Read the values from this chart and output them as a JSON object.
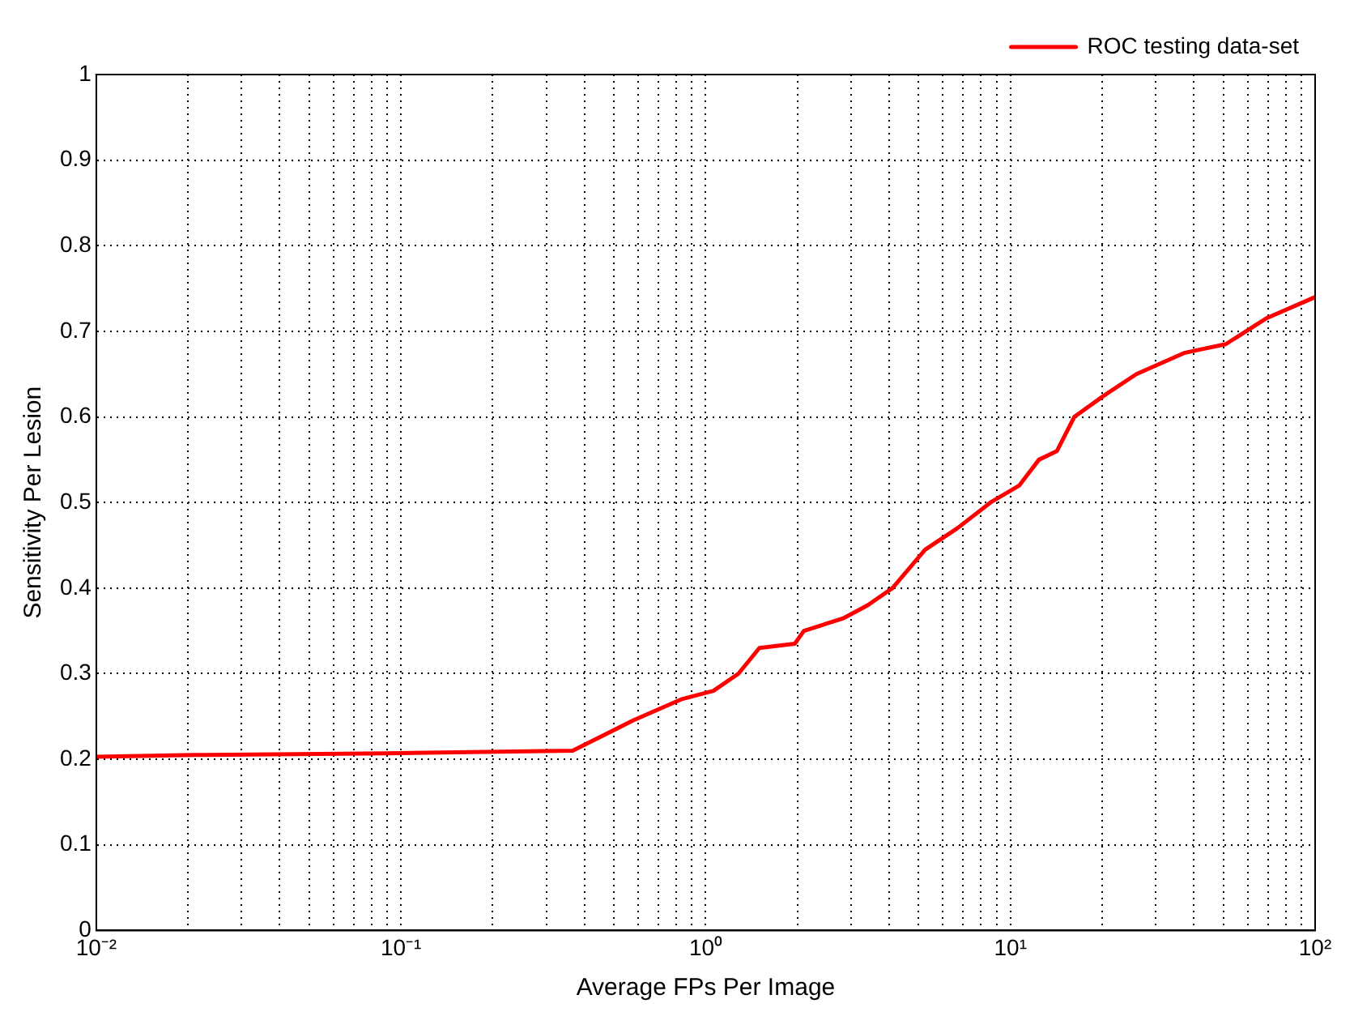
{
  "chart_data": {
    "type": "line",
    "xlabel": "Average FPs Per Image",
    "ylabel": "Sensitivity Per Lesion",
    "log": "x",
    "grid": true,
    "legend": "top right",
    "marker": "none",
    "line_style": "solid",
    "xlim": [
      0.01,
      100
    ],
    "ylim": [
      0,
      1
    ],
    "xticks": [
      {
        "value": 0.01,
        "label": "10⁻²"
      },
      {
        "value": 0.02,
        "label": null
      },
      {
        "value": 0.03,
        "label": null
      },
      {
        "value": 0.04,
        "label": null
      },
      {
        "value": 0.05,
        "label": null
      },
      {
        "value": 0.06,
        "label": null
      },
      {
        "value": 0.07,
        "label": null
      },
      {
        "value": 0.08,
        "label": null
      },
      {
        "value": 0.09,
        "label": null
      },
      {
        "value": 0.1,
        "label": "10⁻¹"
      },
      {
        "value": 0.2,
        "label": null
      },
      {
        "value": 0.3,
        "label": null
      },
      {
        "value": 0.4,
        "label": null
      },
      {
        "value": 0.5,
        "label": null
      },
      {
        "value": 0.6,
        "label": null
      },
      {
        "value": 0.7,
        "label": null
      },
      {
        "value": 0.8,
        "label": null
      },
      {
        "value": 0.9,
        "label": null
      },
      {
        "value": 1,
        "label": "10⁰"
      },
      {
        "value": 2,
        "label": null
      },
      {
        "value": 3,
        "label": null
      },
      {
        "value": 4,
        "label": null
      },
      {
        "value": 5,
        "label": null
      },
      {
        "value": 6,
        "label": null
      },
      {
        "value": 7,
        "label": null
      },
      {
        "value": 8,
        "label": null
      },
      {
        "value": 9,
        "label": null
      },
      {
        "value": 10,
        "label": "10¹"
      },
      {
        "value": 20,
        "label": null
      },
      {
        "value": 30,
        "label": null
      },
      {
        "value": 40,
        "label": null
      },
      {
        "value": 50,
        "label": null
      },
      {
        "value": 60,
        "label": null
      },
      {
        "value": 70,
        "label": null
      },
      {
        "value": 80,
        "label": null
      },
      {
        "value": 90,
        "label": null
      },
      {
        "value": 100,
        "label": "10²"
      }
    ],
    "yticks": [
      0,
      0.1,
      0.2,
      0.3,
      0.4,
      0.5,
      0.6,
      0.7,
      0.8,
      0.9,
      1
    ],
    "series": [
      {
        "name": "ROC testing data-set",
        "color": "#ff0000",
        "x": [
          0.01,
          0.021,
          0.091,
          0.366,
          0.575,
          0.83,
          1.06,
          1.28,
          1.5,
          1.96,
          2.1,
          2.84,
          3.4,
          4.1,
          5.25,
          6.7,
          8.6,
          10.7,
          12.4,
          14.2,
          16.2,
          20.3,
          25.9,
          37.4,
          50.9,
          69,
          100
        ],
        "values": [
          0.203,
          0.205,
          0.207,
          0.21,
          0.245,
          0.27,
          0.28,
          0.3,
          0.33,
          0.335,
          0.35,
          0.365,
          0.38,
          0.4,
          0.445,
          0.47,
          0.5,
          0.52,
          0.55,
          0.56,
          0.6,
          0.625,
          0.65,
          0.675,
          0.685,
          0.715,
          0.74
        ]
      }
    ]
  }
}
